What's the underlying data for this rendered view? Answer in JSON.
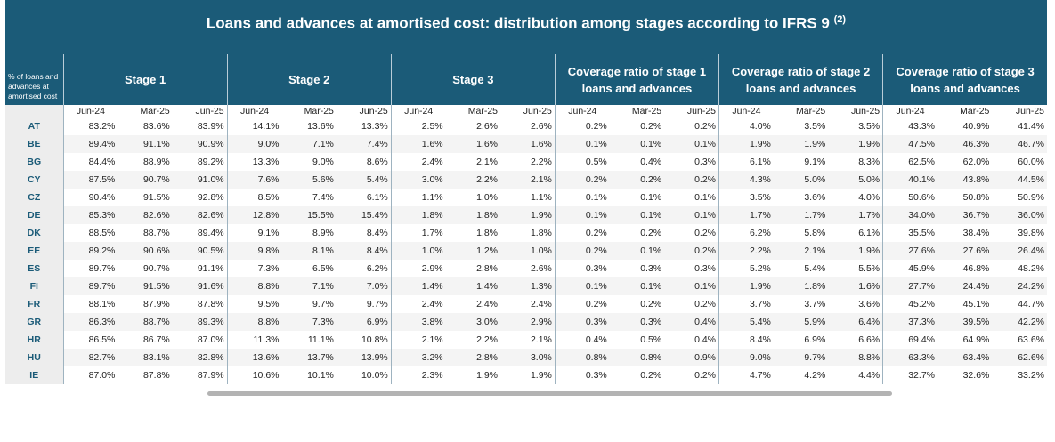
{
  "title": "Loans and advances at amortised cost: distribution among stages according to IFRS 9",
  "title_note": "(2)",
  "corner_label": "% of loans and advances at amortised cost",
  "groups": [
    {
      "l1": "Stage 1",
      "l2": ""
    },
    {
      "l1": "Stage 2",
      "l2": ""
    },
    {
      "l1": "Stage 3",
      "l2": ""
    },
    {
      "l1": "Coverage ratio of stage 1",
      "l2": "loans and advances"
    },
    {
      "l1": "Coverage ratio of stage 2",
      "l2": "loans and advances"
    },
    {
      "l1": "Coverage ratio of stage 3",
      "l2": "loans and advances"
    }
  ],
  "periods": [
    "Jun-24",
    "Mar-25",
    "Jun-25"
  ],
  "rows": [
    {
      "c": "AT",
      "v": [
        "83.2%",
        "83.6%",
        "83.9%",
        "14.1%",
        "13.6%",
        "13.3%",
        "2.5%",
        "2.6%",
        "2.6%",
        "0.2%",
        "0.2%",
        "0.2%",
        "4.0%",
        "3.5%",
        "3.5%",
        "43.3%",
        "40.9%",
        "41.4%"
      ]
    },
    {
      "c": "BE",
      "v": [
        "89.4%",
        "91.1%",
        "90.9%",
        "9.0%",
        "7.1%",
        "7.4%",
        "1.6%",
        "1.6%",
        "1.6%",
        "0.1%",
        "0.1%",
        "0.1%",
        "1.9%",
        "1.9%",
        "1.9%",
        "47.5%",
        "46.3%",
        "46.7%"
      ]
    },
    {
      "c": "BG",
      "v": [
        "84.4%",
        "88.9%",
        "89.2%",
        "13.3%",
        "9.0%",
        "8.6%",
        "2.4%",
        "2.1%",
        "2.2%",
        "0.5%",
        "0.4%",
        "0.3%",
        "6.1%",
        "9.1%",
        "8.3%",
        "62.5%",
        "62.0%",
        "60.0%"
      ]
    },
    {
      "c": "CY",
      "v": [
        "87.5%",
        "90.7%",
        "91.0%",
        "7.6%",
        "5.6%",
        "5.4%",
        "3.0%",
        "2.2%",
        "2.1%",
        "0.2%",
        "0.2%",
        "0.2%",
        "4.3%",
        "5.0%",
        "5.0%",
        "40.1%",
        "43.8%",
        "44.5%"
      ]
    },
    {
      "c": "CZ",
      "v": [
        "90.4%",
        "91.5%",
        "92.8%",
        "8.5%",
        "7.4%",
        "6.1%",
        "1.1%",
        "1.0%",
        "1.1%",
        "0.1%",
        "0.1%",
        "0.1%",
        "3.5%",
        "3.6%",
        "4.0%",
        "50.6%",
        "50.8%",
        "50.9%"
      ]
    },
    {
      "c": "DE",
      "v": [
        "85.3%",
        "82.6%",
        "82.6%",
        "12.8%",
        "15.5%",
        "15.4%",
        "1.8%",
        "1.8%",
        "1.9%",
        "0.1%",
        "0.1%",
        "0.1%",
        "1.7%",
        "1.7%",
        "1.7%",
        "34.0%",
        "36.7%",
        "36.0%"
      ]
    },
    {
      "c": "DK",
      "v": [
        "88.5%",
        "88.7%",
        "89.4%",
        "9.1%",
        "8.9%",
        "8.4%",
        "1.7%",
        "1.8%",
        "1.8%",
        "0.2%",
        "0.2%",
        "0.2%",
        "6.2%",
        "5.8%",
        "6.1%",
        "35.5%",
        "38.4%",
        "39.8%"
      ]
    },
    {
      "c": "EE",
      "v": [
        "89.2%",
        "90.6%",
        "90.5%",
        "9.8%",
        "8.1%",
        "8.4%",
        "1.0%",
        "1.2%",
        "1.0%",
        "0.2%",
        "0.1%",
        "0.2%",
        "2.2%",
        "2.1%",
        "1.9%",
        "27.6%",
        "27.6%",
        "26.4%"
      ]
    },
    {
      "c": "ES",
      "v": [
        "89.7%",
        "90.7%",
        "91.1%",
        "7.3%",
        "6.5%",
        "6.2%",
        "2.9%",
        "2.8%",
        "2.6%",
        "0.3%",
        "0.3%",
        "0.3%",
        "5.2%",
        "5.4%",
        "5.5%",
        "45.9%",
        "46.8%",
        "48.2%"
      ]
    },
    {
      "c": "FI",
      "v": [
        "89.7%",
        "91.5%",
        "91.6%",
        "8.8%",
        "7.1%",
        "7.0%",
        "1.4%",
        "1.4%",
        "1.3%",
        "0.1%",
        "0.1%",
        "0.1%",
        "1.9%",
        "1.8%",
        "1.6%",
        "27.7%",
        "24.4%",
        "24.2%"
      ]
    },
    {
      "c": "FR",
      "v": [
        "88.1%",
        "87.9%",
        "87.8%",
        "9.5%",
        "9.7%",
        "9.7%",
        "2.4%",
        "2.4%",
        "2.4%",
        "0.2%",
        "0.2%",
        "0.2%",
        "3.7%",
        "3.7%",
        "3.6%",
        "45.2%",
        "45.1%",
        "44.7%"
      ]
    },
    {
      "c": "GR",
      "v": [
        "86.3%",
        "88.7%",
        "89.3%",
        "8.8%",
        "7.3%",
        "6.9%",
        "3.8%",
        "3.0%",
        "2.9%",
        "0.3%",
        "0.3%",
        "0.4%",
        "5.4%",
        "5.9%",
        "6.4%",
        "37.3%",
        "39.5%",
        "42.2%"
      ]
    },
    {
      "c": "HR",
      "v": [
        "86.5%",
        "86.7%",
        "87.0%",
        "11.3%",
        "11.1%",
        "10.8%",
        "2.1%",
        "2.2%",
        "2.1%",
        "0.4%",
        "0.5%",
        "0.4%",
        "8.4%",
        "6.9%",
        "6.6%",
        "69.4%",
        "64.9%",
        "63.6%"
      ]
    },
    {
      "c": "HU",
      "v": [
        "82.7%",
        "83.1%",
        "82.8%",
        "13.6%",
        "13.7%",
        "13.9%",
        "3.2%",
        "2.8%",
        "3.0%",
        "0.8%",
        "0.8%",
        "0.9%",
        "9.0%",
        "9.7%",
        "8.8%",
        "63.3%",
        "63.4%",
        "62.6%"
      ]
    },
    {
      "c": "IE",
      "v": [
        "87.0%",
        "87.8%",
        "87.9%",
        "10.6%",
        "10.1%",
        "10.0%",
        "2.3%",
        "1.9%",
        "1.9%",
        "0.3%",
        "0.2%",
        "0.2%",
        "4.7%",
        "4.2%",
        "4.4%",
        "32.7%",
        "32.6%",
        "33.2%"
      ]
    }
  ]
}
